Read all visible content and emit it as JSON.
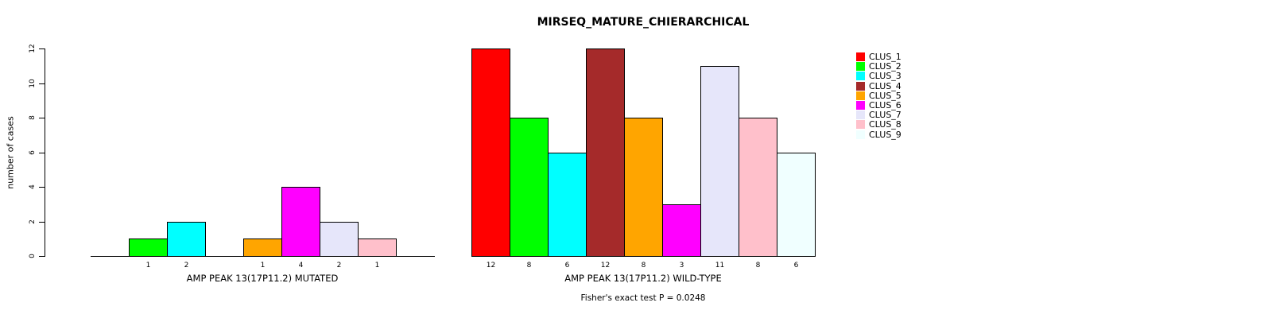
{
  "title": "MIRSEQ_MATURE_CHIERARCHICAL",
  "y_axis_label": "number of cases",
  "footnote": "Fisher's exact test P = 0.0248",
  "chart_data": {
    "type": "bar",
    "title": "MIRSEQ_MATURE_CHIERARCHICAL",
    "ylabel": "number of cases",
    "ylim": [
      0,
      12
    ],
    "yticks": [
      0,
      2,
      4,
      6,
      8,
      10,
      12
    ],
    "grid": false,
    "legend_position": "right",
    "categories": [
      "CLUS_1",
      "CLUS_2",
      "CLUS_3",
      "CLUS_4",
      "CLUS_5",
      "CLUS_6",
      "CLUS_7",
      "CLUS_8",
      "CLUS_9"
    ],
    "colors": [
      "#FF0000",
      "#00FF00",
      "#00FFFF",
      "#A52A2A",
      "#FFA500",
      "#FF00FF",
      "#E6E6FA",
      "#FFC0CB",
      "#F0FFFF"
    ],
    "panels": [
      {
        "xlabel": "AMP PEAK 13(17P11.2) MUTATED",
        "values": [
          0,
          1,
          2,
          0,
          1,
          4,
          2,
          1,
          0
        ],
        "bar_labels": [
          "",
          "1",
          "2",
          "",
          "1",
          "4",
          "2",
          "1",
          ""
        ]
      },
      {
        "xlabel": "AMP PEAK 13(17P11.2) WILD-TYPE",
        "values": [
          12,
          8,
          6,
          12,
          8,
          3,
          11,
          8,
          6
        ],
        "bar_labels": [
          "12",
          "8",
          "6",
          "12",
          "8",
          "3",
          "11",
          "8",
          "6"
        ]
      }
    ],
    "annotation": "Fisher's exact test P = 0.0248"
  }
}
